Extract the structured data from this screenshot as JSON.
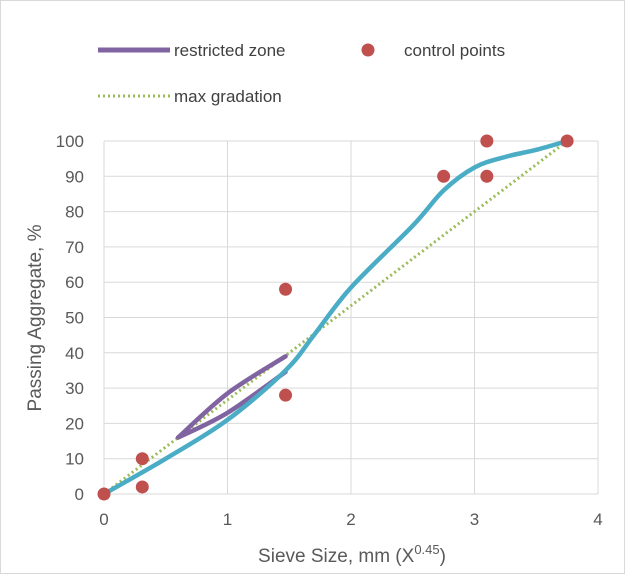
{
  "chart_data": {
    "type": "scatter",
    "xlabel_main": "Sieve Size, mm (X",
    "xlabel_sup": "0.45",
    "xlabel_close": ")",
    "ylabel": "Passing Aggregate, %",
    "xlim": [
      0,
      4
    ],
    "ylim": [
      0,
      100
    ],
    "x_ticks": [
      0,
      1,
      2,
      3,
      4
    ],
    "y_ticks": [
      0,
      10,
      20,
      30,
      40,
      50,
      60,
      70,
      80,
      90,
      100
    ],
    "grid": true,
    "legend_position": "top",
    "series": [
      {
        "name": "restricted zone",
        "kind": "line",
        "color": "#8064a2",
        "upper": [
          [
            0.6,
            16
          ],
          [
            1.0,
            28.5
          ],
          [
            1.47,
            39
          ]
        ],
        "lower": [
          [
            0.6,
            16
          ],
          [
            1.0,
            23
          ],
          [
            1.47,
            34.6
          ]
        ]
      },
      {
        "name": "control points",
        "kind": "scatter",
        "color": "#c0504d",
        "points": [
          [
            0,
            0
          ],
          [
            0.31,
            10
          ],
          [
            0.31,
            2
          ],
          [
            1.47,
            58
          ],
          [
            1.47,
            28
          ],
          [
            2.75,
            90
          ],
          [
            3.1,
            100
          ],
          [
            3.1,
            90
          ],
          [
            3.75,
            100
          ]
        ]
      },
      {
        "name": "max gradation",
        "kind": "dotted-line",
        "color": "#9bbb59",
        "points": [
          [
            0,
            0
          ],
          [
            3.75,
            100
          ]
        ]
      },
      {
        "kind": "line",
        "color": "#4bacc6",
        "points": [
          [
            0,
            0
          ],
          [
            0.5,
            10
          ],
          [
            1.0,
            21
          ],
          [
            1.47,
            35
          ],
          [
            1.7,
            45
          ],
          [
            2.0,
            58.5
          ],
          [
            2.5,
            76
          ],
          [
            2.75,
            86
          ],
          [
            3.0,
            92.5
          ],
          [
            3.25,
            95.5
          ],
          [
            3.5,
            97.5
          ],
          [
            3.75,
            100
          ]
        ]
      }
    ]
  }
}
